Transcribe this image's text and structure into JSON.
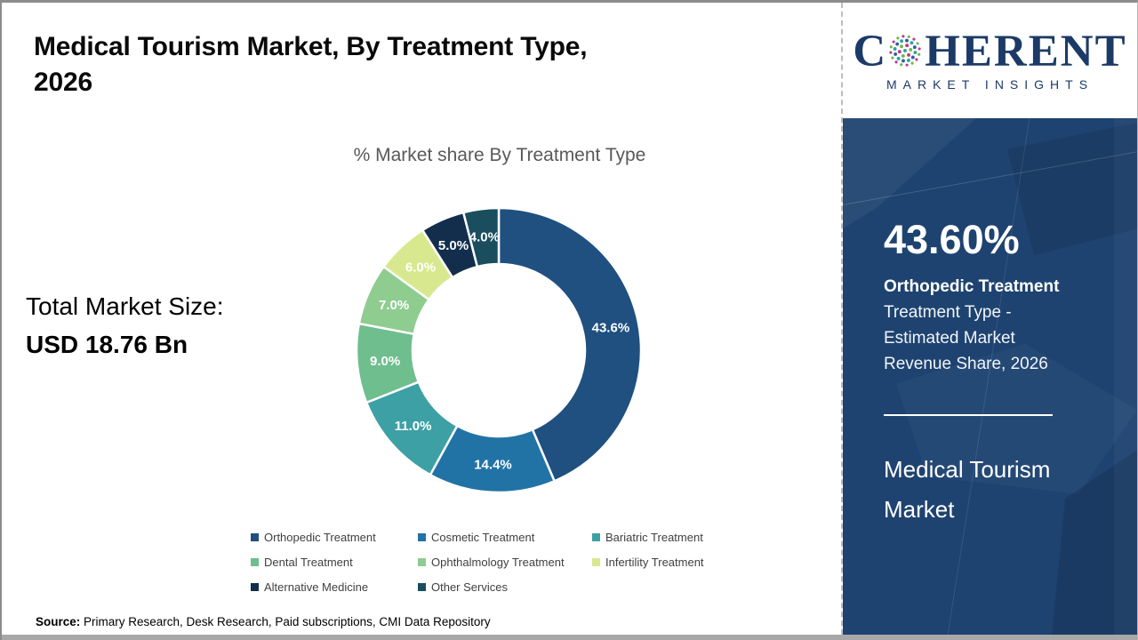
{
  "header": {
    "title": "Medical Tourism Market, By Treatment Type, 2026"
  },
  "logo": {
    "brand_c": "C",
    "brand_rest": "HERENT",
    "tagline": "MARKET INSIGHTS",
    "brand_color": "#1c3a67",
    "globe_colors": [
      "#2ba3a3",
      "#76b44a",
      "#30609f",
      "#c13a8c"
    ]
  },
  "left_stat": {
    "label": "Total Market Size:",
    "value": "USD 18.76 Bn"
  },
  "chart_data": {
    "type": "pie",
    "donut": true,
    "title": "% Market share By Treatment Type",
    "categories": [
      "Orthopedic Treatment",
      "Cosmetic Treatment",
      "Bariatric Treatment",
      "Dental Treatment",
      "Ophthalmology Treatment",
      "Infertility Treatment",
      "Alternative Medicine",
      "Other Services"
    ],
    "values": [
      43.6,
      14.4,
      11.0,
      9.0,
      7.0,
      6.0,
      5.0,
      4.0
    ],
    "labels": [
      "43.6%",
      "14.4%",
      "11.0%",
      "9.0%",
      "7.0%",
      "6.0%",
      "5.0%",
      "4.0%"
    ],
    "colors": [
      "#1f5080",
      "#2273a5",
      "#3ca0a4",
      "#6fbe8e",
      "#8fcc90",
      "#d8e88e",
      "#132e4d",
      "#1a4e5f"
    ],
    "legend_position": "bottom",
    "start_angle_deg": 0,
    "direction": "clockwise",
    "units": "%"
  },
  "right_panel": {
    "stat_value": "43.60%",
    "stat_label": "Orthopedic Treatment",
    "stat_desc": "Treatment Type - Estimated Market Revenue Share, 2026",
    "panel_title": "Medical Tourism Market",
    "background_color": "#1e4370"
  },
  "footer": {
    "source_label": "Source:",
    "source_text": " Primary Research, Desk Research, Paid subscriptions, CMI Data Repository"
  }
}
